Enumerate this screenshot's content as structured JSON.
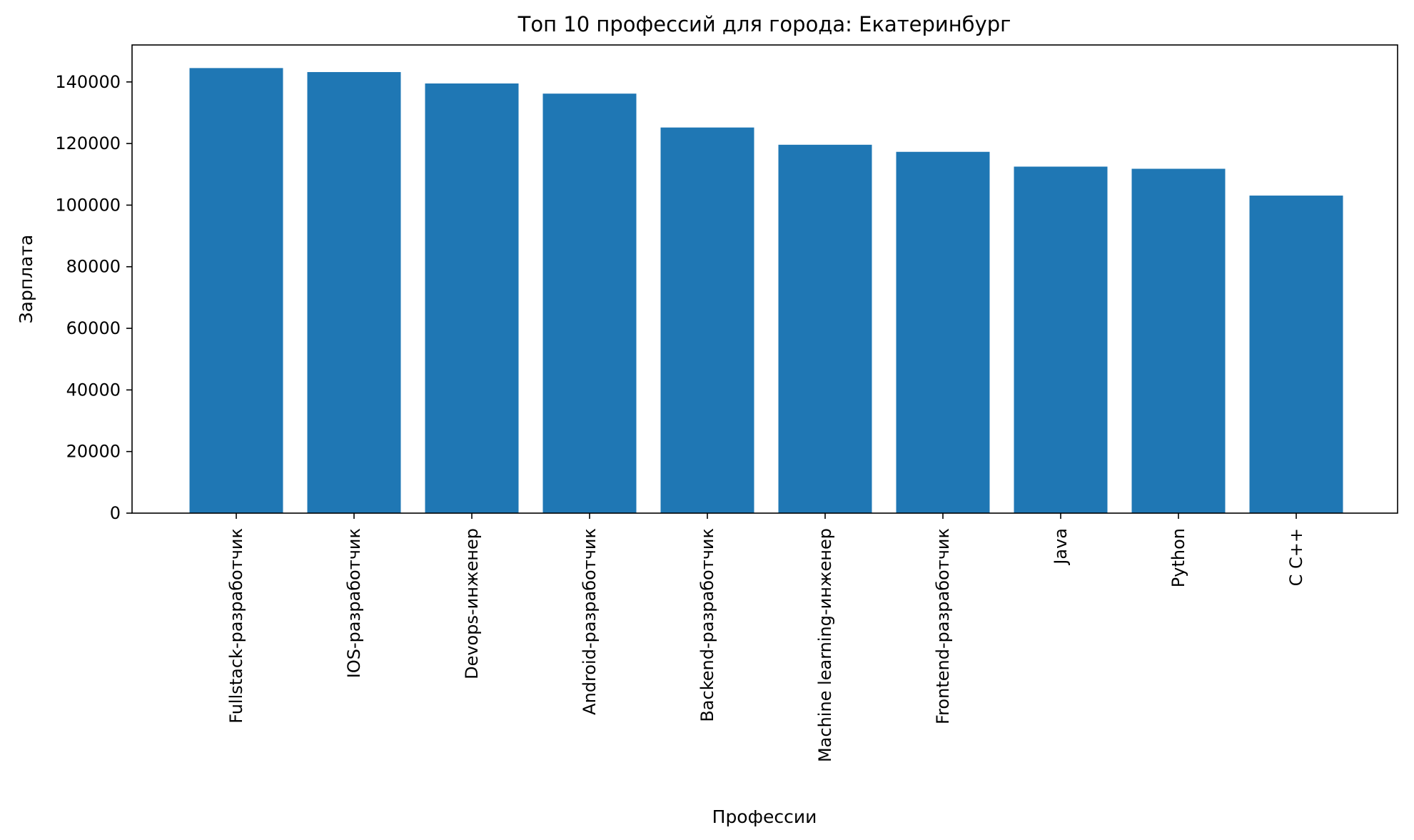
{
  "chart_data": {
    "type": "bar",
    "title": "Топ 10 профессий для города: Екатеринбург",
    "xlabel": "Профессии",
    "ylabel": "Зарплата",
    "categories": [
      "Fullstack-разработчик",
      "IOS-разработчик",
      "Devops-инженер",
      "Android-разработчик",
      "Backend-разработчик",
      "Machine learning-инженер",
      "Frontend-разработчик",
      "Java",
      "Python",
      "C C++"
    ],
    "values": [
      144500,
      143200,
      139500,
      136200,
      125200,
      119600,
      117300,
      112500,
      111800,
      103100
    ],
    "ylim": [
      0,
      152000
    ],
    "yticks": [
      0,
      20000,
      40000,
      60000,
      80000,
      100000,
      120000,
      140000
    ],
    "ytick_labels": [
      "0",
      "20000",
      "40000",
      "60000",
      "80000",
      "100000",
      "120000",
      "140000"
    ],
    "bar_color": "#1f77b4",
    "grid": false,
    "legend": "none"
  }
}
